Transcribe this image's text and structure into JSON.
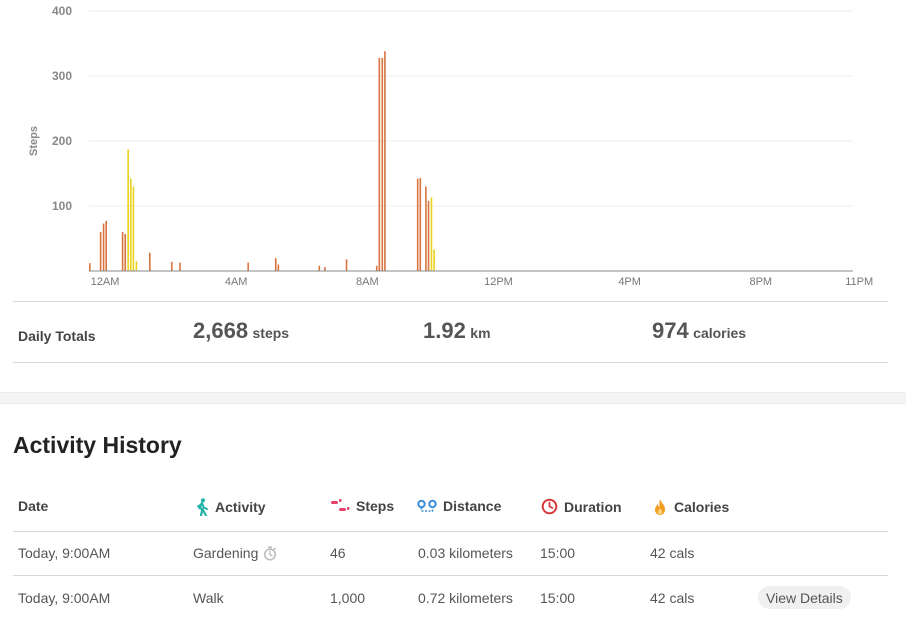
{
  "chart_data": {
    "type": "bar",
    "ylabel": "Steps",
    "ylim": [
      0,
      400
    ],
    "yticks": [
      "100",
      "200",
      "300",
      "400"
    ],
    "ytick_values": [
      100,
      200,
      300,
      400
    ],
    "xlim_hours": [
      0,
      23.3
    ],
    "xticks": [
      {
        "label": "12AM",
        "hour": 0
      },
      {
        "label": "4AM",
        "hour": 4
      },
      {
        "label": "8AM",
        "hour": 8
      },
      {
        "label": "12PM",
        "hour": 12
      },
      {
        "label": "4PM",
        "hour": 16
      },
      {
        "label": "8PM",
        "hour": 20
      },
      {
        "label": "11PM",
        "hour": 23
      }
    ],
    "colors": {
      "default": "#d9743f",
      "highlight": "#e9d21c"
    },
    "bars": [
      {
        "hour": 0.0,
        "value": 12,
        "c": "default"
      },
      {
        "hour": 0.33,
        "value": 60,
        "c": "default"
      },
      {
        "hour": 0.42,
        "value": 73,
        "c": "default"
      },
      {
        "hour": 0.5,
        "value": 77,
        "c": "default"
      },
      {
        "hour": 1.0,
        "value": 60,
        "c": "default"
      },
      {
        "hour": 1.08,
        "value": 57,
        "c": "default"
      },
      {
        "hour": 1.17,
        "value": 187,
        "c": "highlight"
      },
      {
        "hour": 1.25,
        "value": 142,
        "c": "highlight"
      },
      {
        "hour": 1.33,
        "value": 130,
        "c": "highlight"
      },
      {
        "hour": 1.42,
        "value": 15,
        "c": "highlight"
      },
      {
        "hour": 1.83,
        "value": 28,
        "c": "default"
      },
      {
        "hour": 2.5,
        "value": 14,
        "c": "default"
      },
      {
        "hour": 2.75,
        "value": 13,
        "c": "default"
      },
      {
        "hour": 4.83,
        "value": 13,
        "c": "default"
      },
      {
        "hour": 5.67,
        "value": 20,
        "c": "default"
      },
      {
        "hour": 5.75,
        "value": 10,
        "c": "default"
      },
      {
        "hour": 7.0,
        "value": 8,
        "c": "default"
      },
      {
        "hour": 7.17,
        "value": 6,
        "c": "default"
      },
      {
        "hour": 7.83,
        "value": 18,
        "c": "default"
      },
      {
        "hour": 8.75,
        "value": 8,
        "c": "default"
      },
      {
        "hour": 8.83,
        "value": 328,
        "c": "default"
      },
      {
        "hour": 8.92,
        "value": 328,
        "c": "default"
      },
      {
        "hour": 9.0,
        "value": 338,
        "c": "default"
      },
      {
        "hour": 10.0,
        "value": 142,
        "c": "default"
      },
      {
        "hour": 10.08,
        "value": 143,
        "c": "default"
      },
      {
        "hour": 10.25,
        "value": 130,
        "c": "default"
      },
      {
        "hour": 10.33,
        "value": 108,
        "c": "default"
      },
      {
        "hour": 10.42,
        "value": 113,
        "c": "highlight"
      },
      {
        "hour": 10.5,
        "value": 33,
        "c": "highlight"
      }
    ]
  },
  "totals": {
    "label": "Daily Totals",
    "steps": {
      "value": "2,668",
      "unit": "steps"
    },
    "distance": {
      "value": "1.92",
      "unit": "km"
    },
    "calories": {
      "value": "974",
      "unit": "calories"
    }
  },
  "history": {
    "title": "Activity History",
    "columns": {
      "date": "Date",
      "activity": "Activity",
      "steps": "Steps",
      "distance": "Distance",
      "duration": "Duration",
      "calories": "Calories"
    },
    "icons": {
      "activity": "walking-person-icon",
      "steps": "footprints-icon",
      "distance": "route-pins-icon",
      "duration": "clock-icon",
      "calories": "flame-icon",
      "timer": "stopwatch-icon"
    },
    "colors": {
      "activity": "#23b3a8",
      "steps": "#e8406c",
      "distance": "#3f8fd8",
      "duration": "#d8383a",
      "calories": "#f39c1f"
    },
    "rows": [
      {
        "date": "Today, 9:00AM",
        "activity": "Gardening",
        "steps": "46",
        "distance": "0.03 kilometers",
        "duration": "15:00",
        "calories": "42 cals"
      },
      {
        "date": "Today, 9:00AM",
        "activity": "Walk",
        "steps": "1,000",
        "distance": "0.72 kilometers",
        "duration": "15:00",
        "calories": "42 cals",
        "action": "View Details"
      }
    ]
  }
}
